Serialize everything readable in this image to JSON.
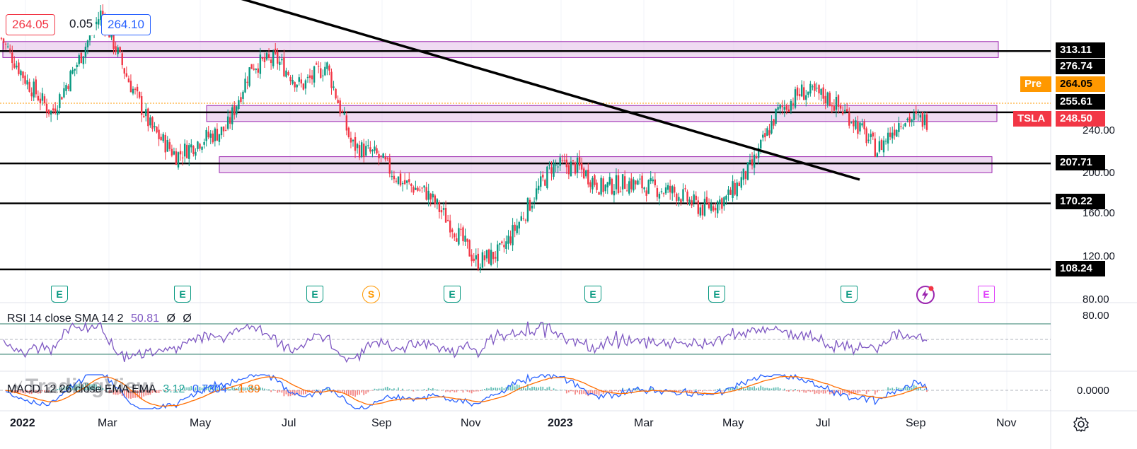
{
  "symbol": "TSLA",
  "quote": {
    "bid": "264.05",
    "spread": "0.05",
    "ask": "264.10"
  },
  "colors": {
    "up": "#089981",
    "down": "#f23645",
    "zone_fill": "#e1bee7",
    "zone_border": "#9c27b0",
    "rsi": "#7e57c2",
    "macd": "#2962ff",
    "signal": "#ff6d00",
    "pre": "#ff9800"
  },
  "horizontal_levels": [
    {
      "label": "313.11",
      "value": 313.11
    },
    {
      "label": "255.61",
      "value": 255.61
    },
    {
      "label": "207.71",
      "value": 207.71
    },
    {
      "label": "170.22",
      "value": 170.22
    },
    {
      "label": "108.24",
      "value": 108.24
    }
  ],
  "price_labels": {
    "high": "276.74",
    "pre_tag": "Pre",
    "pre_price": "264.05",
    "symbol_tag": "TSLA",
    "last_price": "248.50"
  },
  "price_axis_ticks": [
    "240.00",
    "200.00",
    "160.00",
    "120.00",
    "80.00"
  ],
  "rsi": {
    "legend": "RSI 14 close SMA 14 2",
    "value": "50.81",
    "na1": "Ø",
    "na2": "Ø",
    "axis_label": "80.00"
  },
  "macd": {
    "legend": "MACD 12 26 close EMA EMA",
    "hist": "3.12",
    "macd": "0.7304",
    "signal": "-1.39",
    "axis_label": "0.0000"
  },
  "watermark": "TradingView",
  "x_axis": [
    "2022",
    "Mar",
    "May",
    "Jul",
    "Sep",
    "Nov",
    "2023",
    "Mar",
    "May",
    "Jul",
    "Sep",
    "Nov"
  ],
  "events": [
    {
      "type": "E",
      "label": "E"
    },
    {
      "type": "E",
      "label": "E"
    },
    {
      "type": "E",
      "label": "E"
    },
    {
      "type": "S",
      "label": "S"
    },
    {
      "type": "E",
      "label": "E"
    },
    {
      "type": "E",
      "label": "E"
    },
    {
      "type": "E",
      "label": "E"
    },
    {
      "type": "E",
      "label": "E"
    },
    {
      "type": "flash",
      "label": ""
    },
    {
      "type": "E-pending",
      "label": "E"
    }
  ],
  "chart_data": {
    "type": "candlestick",
    "zones": [
      {
        "from": 307,
        "to": 322
      },
      {
        "from": 247,
        "to": 262
      },
      {
        "from": 199,
        "to": 214
      }
    ],
    "trendline": {
      "from": [
        "2022-04",
        345
      ],
      "to": [
        "2023-07",
        197
      ]
    },
    "price_path": [
      {
        "date": "2022-01",
        "close": 325
      },
      {
        "date": "2022-02",
        "close": 285
      },
      {
        "date": "2022-03",
        "close": 255
      },
      {
        "date": "2022-03b",
        "close": 300
      },
      {
        "date": "2022-04",
        "close": 350
      },
      {
        "date": "2022-04b",
        "close": 290
      },
      {
        "date": "2022-05",
        "close": 240
      },
      {
        "date": "2022-05b",
        "close": 215
      },
      {
        "date": "2022-06",
        "close": 230
      },
      {
        "date": "2022-07",
        "close": 240
      },
      {
        "date": "2022-07b",
        "close": 300
      },
      {
        "date": "2022-08",
        "close": 305
      },
      {
        "date": "2022-09",
        "close": 280
      },
      {
        "date": "2022-09b",
        "close": 300
      },
      {
        "date": "2022-10",
        "close": 225
      },
      {
        "date": "2022-10b",
        "close": 215
      },
      {
        "date": "2022-11",
        "close": 190
      },
      {
        "date": "2022-11b",
        "close": 180
      },
      {
        "date": "2022-12",
        "close": 150
      },
      {
        "date": "2022-12b",
        "close": 115
      },
      {
        "date": "2023-01",
        "close": 125
      },
      {
        "date": "2023-01b",
        "close": 165
      },
      {
        "date": "2023-02",
        "close": 205
      },
      {
        "date": "2023-02b",
        "close": 205
      },
      {
        "date": "2023-03",
        "close": 185
      },
      {
        "date": "2023-03b",
        "close": 190
      },
      {
        "date": "2023-04",
        "close": 185
      },
      {
        "date": "2023-04b",
        "close": 180
      },
      {
        "date": "2023-05",
        "close": 165
      },
      {
        "date": "2023-05b",
        "close": 175
      },
      {
        "date": "2023-06",
        "close": 205
      },
      {
        "date": "2023-06b",
        "close": 255
      },
      {
        "date": "2023-07",
        "close": 275
      },
      {
        "date": "2023-07b",
        "close": 270
      },
      {
        "date": "2023-08",
        "close": 250
      },
      {
        "date": "2023-08b",
        "close": 220
      },
      {
        "date": "2023-09",
        "close": 250
      },
      {
        "date": "2023-09b",
        "close": 248
      }
    ]
  }
}
